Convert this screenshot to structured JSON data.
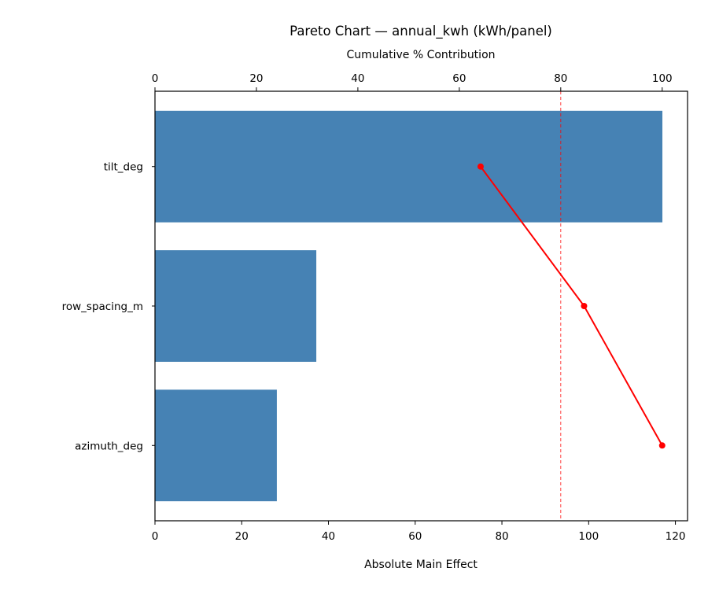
{
  "chart_data": {
    "type": "bar",
    "orientation": "horizontal",
    "title": "Pareto Chart — annual_kwh (kWh/panel)",
    "xlabel": "Absolute Main Effect",
    "x2label": "Cumulative % Contribution",
    "ylabel": "",
    "categories": [
      "tilt_deg",
      "row_spacing_m",
      "azimuth_deg"
    ],
    "values": [
      117.0,
      37.2,
      28.1
    ],
    "cumulative_percent": [
      64.2,
      84.6,
      100.0
    ],
    "threshold_percent": 80,
    "xlim": [
      0,
      122.8
    ],
    "x2lim": [
      0,
      105
    ],
    "xticks": [
      0,
      20,
      40,
      60,
      80,
      100,
      120
    ],
    "x2ticks": [
      0,
      20,
      40,
      60,
      80,
      100
    ],
    "grid": false,
    "colors": {
      "bar": "#4682b4",
      "line": "#ff0000",
      "threshold": "#ff0000"
    }
  }
}
